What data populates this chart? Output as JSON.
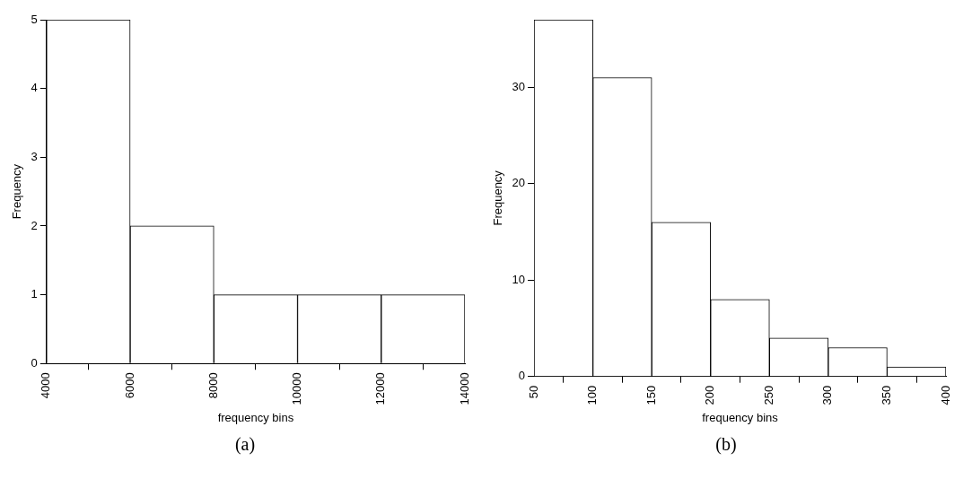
{
  "chart_data": [
    {
      "type": "histogram",
      "xlabel": "frequency bins",
      "ylabel": "Frequency",
      "bins": [
        4000,
        6000,
        8000,
        10000,
        12000,
        14000
      ],
      "values": [
        5,
        2,
        1,
        1,
        1
      ],
      "color": "#ffffff",
      "xlim": [
        4000,
        14000
      ],
      "xticks": [
        4000,
        6000,
        8000,
        10000,
        12000,
        14000
      ],
      "ylim": [
        0,
        5
      ],
      "yticks": [
        0,
        1,
        2,
        3,
        4,
        5
      ],
      "grid": false,
      "annotations": [
        "(a)"
      ]
    },
    {
      "type": "histogram",
      "xlabel": "frequency bins",
      "ylabel": "Frequency",
      "bins": [
        50,
        100,
        150,
        200,
        250,
        300,
        350,
        400
      ],
      "values": [
        37,
        31,
        16,
        8,
        4,
        3,
        1
      ],
      "color": "#ffffff",
      "xlim": [
        50,
        400
      ],
      "xticks": [
        50,
        100,
        150,
        200,
        250,
        300,
        350,
        400
      ],
      "ylim": [
        0,
        37
      ],
      "yticks": [
        0,
        10,
        20,
        30
      ],
      "grid": false,
      "annotations": [
        "(b)"
      ]
    }
  ]
}
